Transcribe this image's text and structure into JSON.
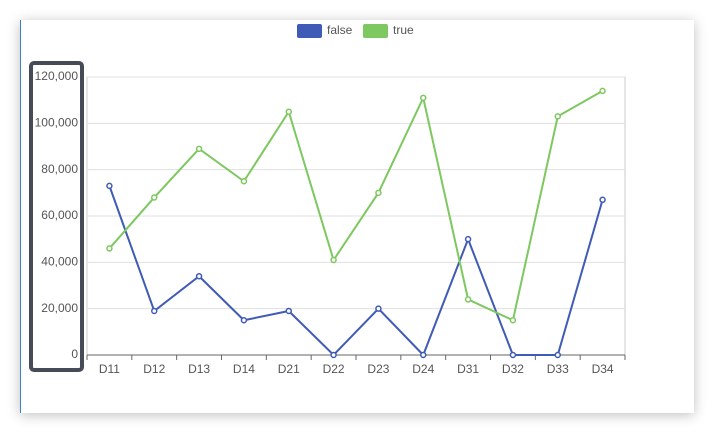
{
  "chart_data": {
    "type": "line",
    "categories": [
      "D11",
      "D12",
      "D13",
      "D14",
      "D21",
      "D22",
      "D23",
      "D24",
      "D31",
      "D32",
      "D33",
      "D34"
    ],
    "series": [
      {
        "name": "false",
        "color": "#3f5bb5",
        "values": [
          73000,
          19000,
          34000,
          15000,
          19000,
          0,
          20000,
          0,
          50000,
          0,
          0,
          67000
        ]
      },
      {
        "name": "true",
        "color": "#7dc85f",
        "values": [
          46000,
          68000,
          89000,
          75000,
          105000,
          41000,
          70000,
          111000,
          24000,
          15000,
          103000,
          114000
        ]
      }
    ],
    "ylim": [
      0,
      120000
    ],
    "yticks": [
      0,
      {
        "value": 20000,
        "label": "20,000"
      },
      {
        "value": 40000,
        "label": "40,000"
      },
      {
        "value": 60000,
        "label": "60,000"
      },
      {
        "value": 80000,
        "label": "80,000"
      },
      {
        "value": 100000,
        "label": "100,000"
      },
      {
        "value": 120000,
        "label": "120,000"
      }
    ],
    "grid": true,
    "legend": "top"
  }
}
